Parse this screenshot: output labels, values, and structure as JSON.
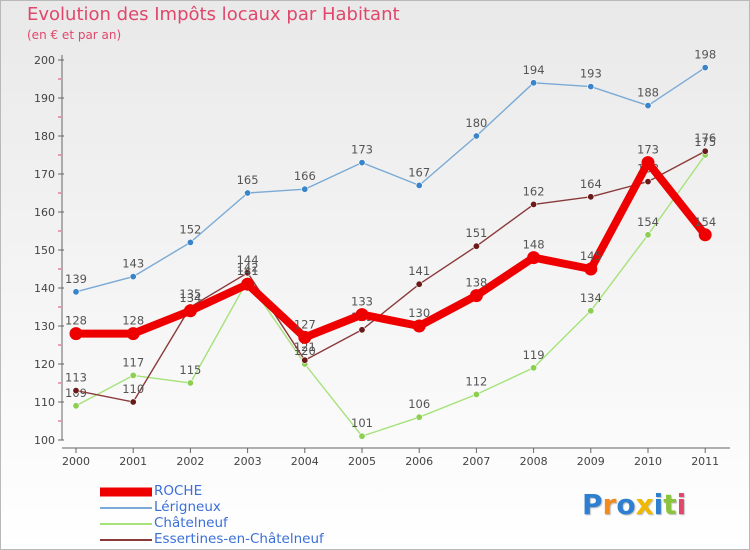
{
  "chart_data": {
    "type": "line",
    "title": "Evolution des Impôts locaux par Habitant",
    "subtitle": "(en € et par an)",
    "xlabel": "",
    "ylabel": "",
    "categories": [
      "2000",
      "2001",
      "2002",
      "2003",
      "2004",
      "2005",
      "2006",
      "2007",
      "2008",
      "2009",
      "2010",
      "2011"
    ],
    "ylim": [
      100,
      200
    ],
    "yticks": [
      "100",
      "110",
      "120",
      "130",
      "140",
      "150",
      "160",
      "170",
      "180",
      "190",
      "200"
    ],
    "grid": false,
    "legend_position": "bottom-left",
    "series": [
      {
        "name": "Lérigneux",
        "color": "#7aaad6",
        "marker": "#3a84c9",
        "values": [
          139,
          143,
          152,
          165,
          166,
          173,
          167,
          180,
          194,
          193,
          188,
          198
        ],
        "labels": [
          "139",
          "143",
          "152",
          "165",
          "166",
          "173",
          "167",
          "180",
          "194",
          "193",
          "188",
          "198"
        ]
      },
      {
        "name": "Châtelneuf",
        "color": "#a6e27a",
        "marker": "#8ccf52",
        "values": [
          109,
          117,
          115,
          142,
          120,
          101,
          106,
          112,
          119,
          134,
          154,
          175
        ],
        "labels": [
          "109",
          "117",
          "115",
          "142",
          "120",
          "101",
          "106",
          "112",
          "119",
          "134",
          "154",
          "175"
        ]
      },
      {
        "name": "Essertines-en-Châtelneuf",
        "color": "#8a3a3a",
        "marker": "#6b1a1a",
        "values": [
          113,
          110,
          135,
          144,
          121,
          129,
          141,
          151,
          162,
          164,
          168,
          176
        ],
        "labels": [
          "113",
          "110",
          "135",
          "144",
          "121",
          "129",
          "141",
          "151",
          "162",
          "164",
          "168",
          "176"
        ]
      },
      {
        "name": "ROCHE",
        "color": "#ee0000",
        "marker": "#ee0000",
        "values": [
          128,
          128,
          134,
          141,
          127,
          133,
          130,
          138,
          148,
          145,
          173,
          154
        ],
        "labels": [
          "128",
          "128",
          "134",
          "141",
          "127",
          "133",
          "130",
          "138",
          "148",
          "145",
          "173",
          "154"
        ]
      }
    ]
  },
  "legend": {
    "items": [
      {
        "label": "ROCHE",
        "color": "#ee0000"
      },
      {
        "label": "Lérigneux",
        "color": "#7aaad6"
      },
      {
        "label": "Châtelneuf",
        "color": "#a6e27a"
      },
      {
        "label": "Essertines-en-Châtelneuf",
        "color": "#8a3a3a"
      }
    ]
  },
  "logo": {
    "letters": [
      "P",
      "r",
      "o",
      "x",
      "i",
      "t",
      "i"
    ],
    "colors": [
      "#2f7fd0",
      "#f28a1e",
      "#2f7fd0",
      "#f0b800",
      "#2f7fd0",
      "#8ac43f",
      "#e0476a"
    ]
  }
}
